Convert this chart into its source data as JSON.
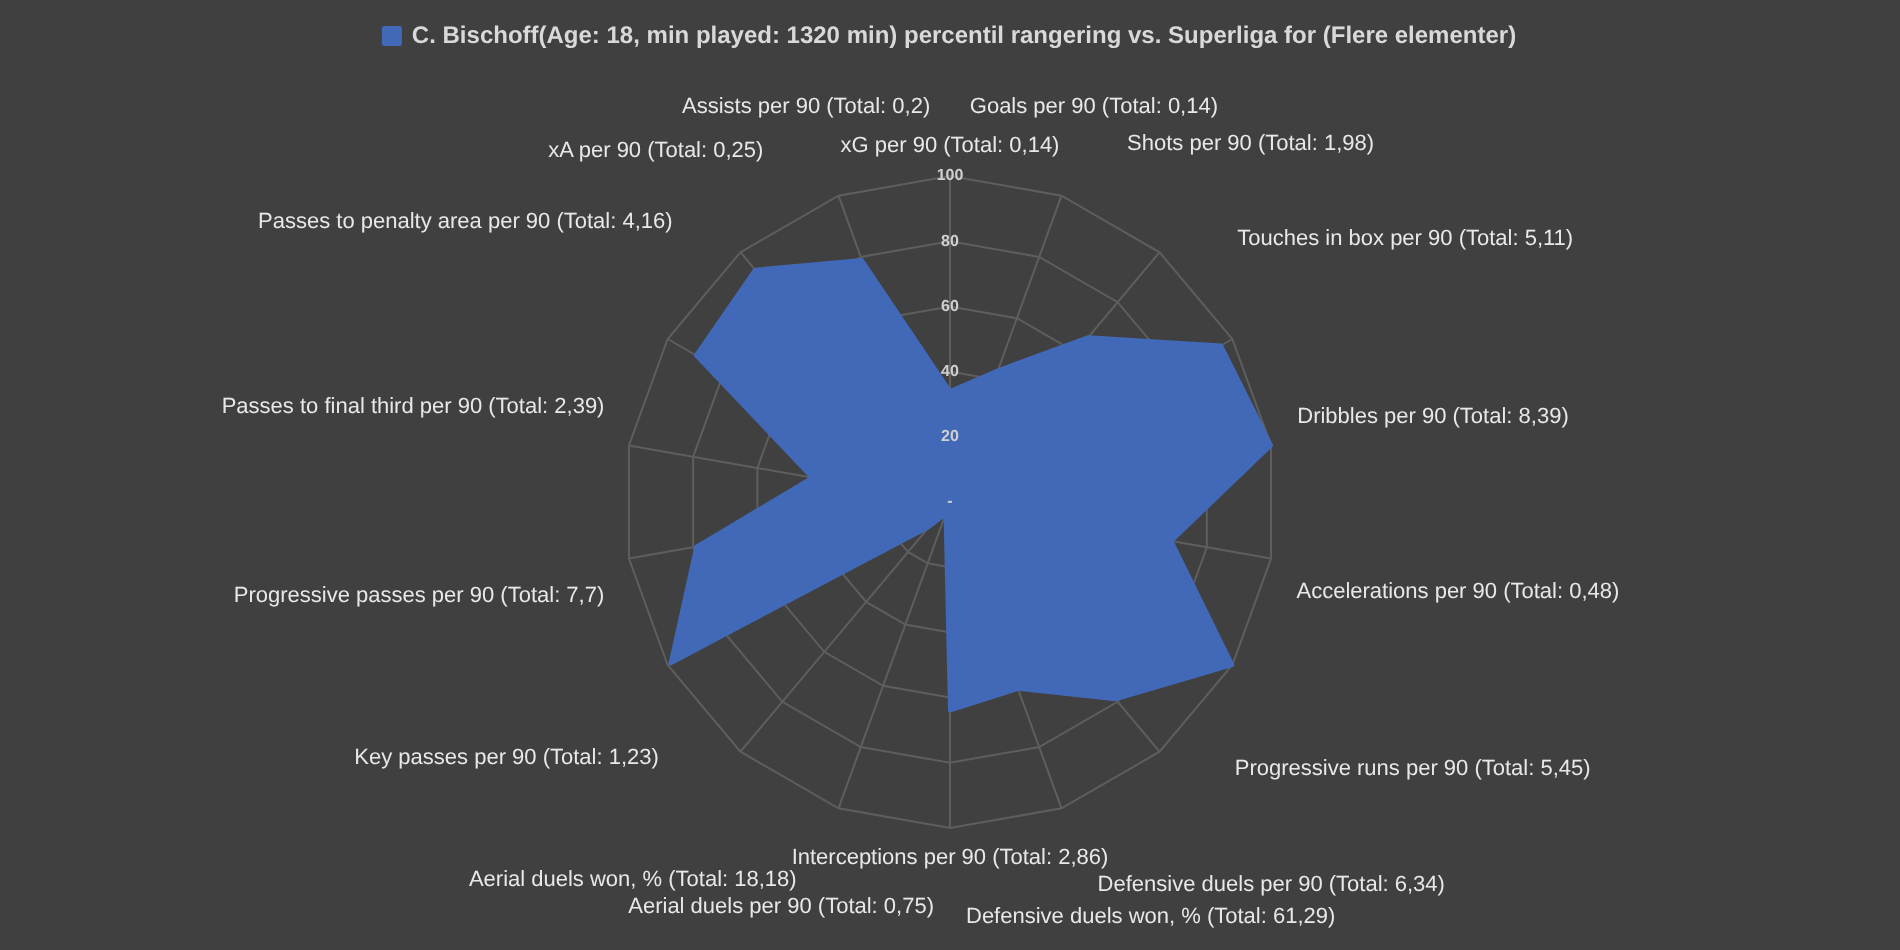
{
  "chart_data": {
    "type": "radar",
    "categories": [
      "xG per 90 (Total: 0,14)",
      "Goals per 90 (Total: 0,14)",
      "Shots per 90 (Total: 1,98)",
      "Touches in box per 90 (Total: 5,11)",
      "Dribbles per 90 (Total: 8,39)",
      "Accelerations per 90 (Total: 0,48)",
      "Progressive runs per 90 (Total: 5,45)",
      "Defensive duels per 90 (Total: 6,34)",
      "Defensive duels won, % (Total: 61,29)",
      "Interceptions per 90 (Total: 2,86)",
      "Aerial duels per 90 (Total: 0,75)",
      "Aerial duels won, % (Total: 18,18)",
      "Key passes per 90 (Total: 1,23)",
      "Progressive passes per 90 (Total: 7,7)",
      "Passes to final third per 90 (Total: 2,39)",
      "Passes to penalty area per 90 (Total: 4,16)",
      "xA per 90 (Total: 0,25)",
      "Assists per 90 (Total: 0,2)"
    ],
    "series": [
      {
        "name": "C. Bischoff(Age: 18, min played: 1320 min) percentil rangering vs. Superliga for (Flere elementer)",
        "color": "#4169b8",
        "values": [
          34,
          43,
          66,
          96,
          100,
          69,
          100,
          79,
          61,
          64,
          4,
          10,
          99,
          79,
          43,
          90,
          93,
          79
        ]
      }
    ],
    "ylim": [
      0,
      100
    ],
    "yticks": [
      {
        "value": 0,
        "label": "-"
      },
      20,
      40,
      60,
      80,
      100
    ],
    "grid": true,
    "legend": "top",
    "marker": "none"
  }
}
